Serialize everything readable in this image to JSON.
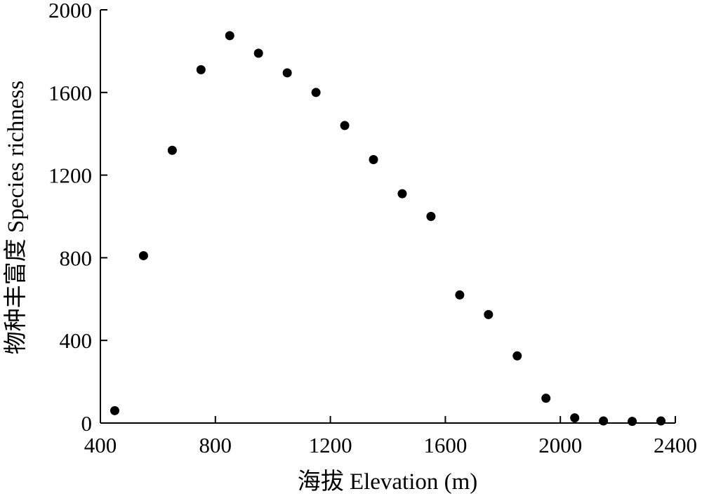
{
  "chart_data": {
    "type": "scatter",
    "xlabel": "海拔 Elevation (m)",
    "ylabel": "物种丰富度 Species richness",
    "xlim": [
      400,
      2400
    ],
    "ylim": [
      0,
      2000
    ],
    "x_ticks": [
      "400",
      "800",
      "1200",
      "1600",
      "2000",
      "2400"
    ],
    "y_ticks": [
      "0",
      "400",
      "800",
      "1200",
      "1600",
      "2000"
    ],
    "grid": false,
    "marker_color": "#000000",
    "series": [
      {
        "points": [
          {
            "x": 450,
            "y": 60
          },
          {
            "x": 550,
            "y": 810
          },
          {
            "x": 650,
            "y": 1320
          },
          {
            "x": 750,
            "y": 1710
          },
          {
            "x": 850,
            "y": 1875
          },
          {
            "x": 950,
            "y": 1790
          },
          {
            "x": 1050,
            "y": 1695
          },
          {
            "x": 1150,
            "y": 1600
          },
          {
            "x": 1250,
            "y": 1440
          },
          {
            "x": 1350,
            "y": 1275
          },
          {
            "x": 1450,
            "y": 1110
          },
          {
            "x": 1550,
            "y": 1000
          },
          {
            "x": 1650,
            "y": 620
          },
          {
            "x": 1750,
            "y": 525
          },
          {
            "x": 1850,
            "y": 325
          },
          {
            "x": 1950,
            "y": 120
          },
          {
            "x": 2050,
            "y": 25
          },
          {
            "x": 2150,
            "y": 10
          },
          {
            "x": 2250,
            "y": 8
          },
          {
            "x": 2350,
            "y": 10
          }
        ]
      }
    ]
  }
}
